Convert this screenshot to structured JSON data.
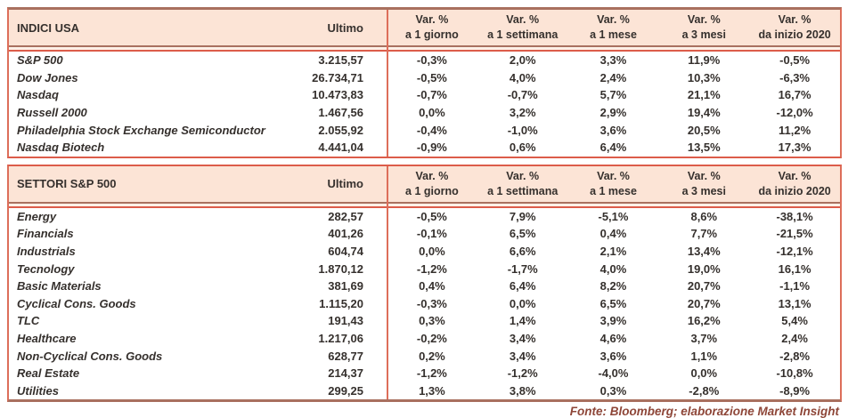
{
  "colors": {
    "header_bg": "#fce4d6",
    "border_muted": "#a9705f",
    "border_bright": "#dc5c4a",
    "text": "#35302d",
    "footer_text": "#8e4638"
  },
  "footer": {
    "source": "Fonte: Bloomberg; elaborazione Market Insight"
  },
  "tables": [
    {
      "title": "INDICI USA",
      "ultimo_label": "Ultimo",
      "var_headers": [
        {
          "line1": "Var. %",
          "line2": "a 1 giorno"
        },
        {
          "line1": "Var. %",
          "line2": "a 1 settimana"
        },
        {
          "line1": "Var. %",
          "line2": "a 1 mese"
        },
        {
          "line1": "Var. %",
          "line2": "a 3 mesi"
        },
        {
          "line1": "Var. %",
          "line2": "da inizio 2020"
        }
      ],
      "rows": [
        {
          "label": "S&P 500",
          "ultimo": "3.215,57",
          "vars": [
            "-0,3%",
            "2,0%",
            "3,3%",
            "11,9%",
            "-0,5%"
          ]
        },
        {
          "label": "Dow Jones",
          "ultimo": "26.734,71",
          "vars": [
            "-0,5%",
            "4,0%",
            "2,4%",
            "10,3%",
            "-6,3%"
          ]
        },
        {
          "label": "Nasdaq",
          "ultimo": "10.473,83",
          "vars": [
            "-0,7%",
            "-0,7%",
            "5,7%",
            "21,1%",
            "16,7%"
          ]
        },
        {
          "label": "Russell 2000",
          "ultimo": "1.467,56",
          "vars": [
            "0,0%",
            "3,2%",
            "2,9%",
            "19,4%",
            "-12,0%"
          ]
        },
        {
          "label": "Philadelphia Stock Exchange Semiconductor",
          "ultimo": "2.055,92",
          "vars": [
            "-0,4%",
            "-1,0%",
            "3,6%",
            "20,5%",
            "11,2%"
          ]
        },
        {
          "label": "Nasdaq Biotech",
          "ultimo": "4.441,04",
          "vars": [
            "-0,9%",
            "0,6%",
            "6,4%",
            "13,5%",
            "17,3%"
          ]
        }
      ]
    },
    {
      "title": "SETTORI S&P 500",
      "ultimo_label": "Ultimo",
      "var_headers": [
        {
          "line1": "Var. %",
          "line2": "a 1 giorno"
        },
        {
          "line1": "Var. %",
          "line2": "a 1 settimana"
        },
        {
          "line1": "Var. %",
          "line2": "a 1 mese"
        },
        {
          "line1": "Var. %",
          "line2": "a 3 mesi"
        },
        {
          "line1": "Var. %",
          "line2": "da inizio 2020"
        }
      ],
      "rows": [
        {
          "label": "Energy",
          "ultimo": "282,57",
          "vars": [
            "-0,5%",
            "7,9%",
            "-5,1%",
            "8,6%",
            "-38,1%"
          ]
        },
        {
          "label": "Financials",
          "ultimo": "401,26",
          "vars": [
            "-0,1%",
            "6,5%",
            "0,4%",
            "7,7%",
            "-21,5%"
          ]
        },
        {
          "label": "Industrials",
          "ultimo": "604,74",
          "vars": [
            "0,0%",
            "6,6%",
            "2,1%",
            "13,4%",
            "-12,1%"
          ]
        },
        {
          "label": "Tecnology",
          "ultimo": "1.870,12",
          "vars": [
            "-1,2%",
            "-1,7%",
            "4,0%",
            "19,0%",
            "16,1%"
          ]
        },
        {
          "label": "Basic Materials",
          "ultimo": "381,69",
          "vars": [
            "0,4%",
            "6,4%",
            "8,2%",
            "20,7%",
            "-1,1%"
          ]
        },
        {
          "label": "Cyclical Cons. Goods",
          "ultimo": "1.115,20",
          "vars": [
            "-0,3%",
            "0,0%",
            "6,5%",
            "20,7%",
            "13,1%"
          ]
        },
        {
          "label": "TLC",
          "ultimo": "191,43",
          "vars": [
            "0,3%",
            "1,4%",
            "3,9%",
            "16,2%",
            "5,4%"
          ]
        },
        {
          "label": "Healthcare",
          "ultimo": "1.217,06",
          "vars": [
            "-0,2%",
            "3,4%",
            "4,6%",
            "3,7%",
            "2,4%"
          ]
        },
        {
          "label": "Non-Cyclical Cons. Goods",
          "ultimo": "628,77",
          "vars": [
            "0,2%",
            "3,4%",
            "3,6%",
            "1,1%",
            "-2,8%"
          ]
        },
        {
          "label": "Real Estate",
          "ultimo": "214,37",
          "vars": [
            "-1,2%",
            "-1,2%",
            "-4,0%",
            "0,0%",
            "-10,8%"
          ]
        },
        {
          "label": "Utilities",
          "ultimo": "299,25",
          "vars": [
            "1,3%",
            "3,8%",
            "0,3%",
            "-2,8%",
            "-8,9%"
          ]
        }
      ]
    }
  ]
}
